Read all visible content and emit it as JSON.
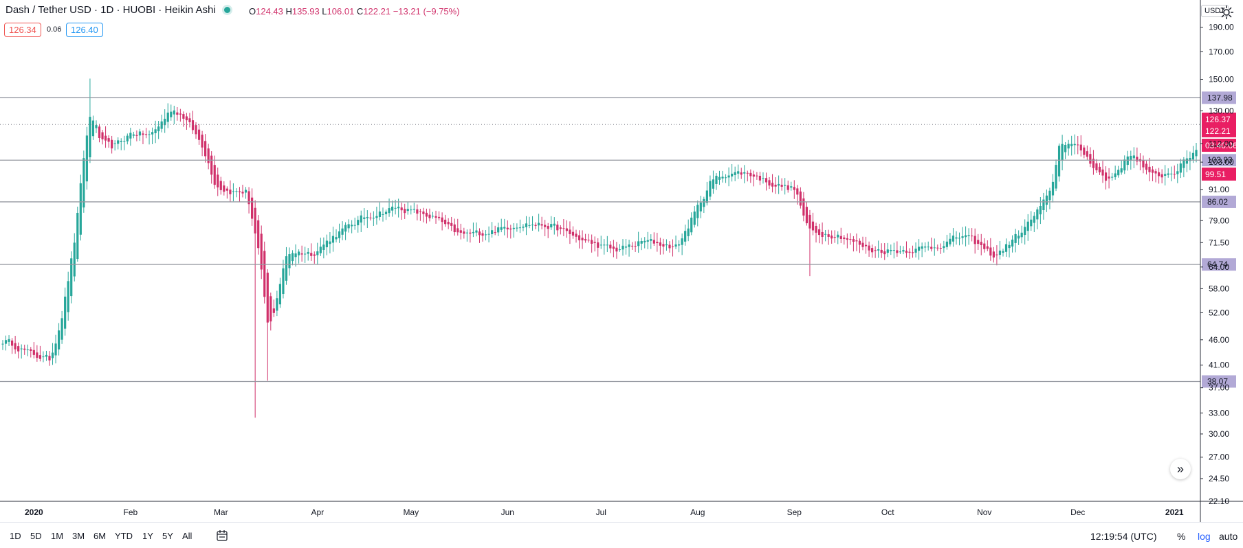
{
  "header": {
    "title": "Dash / Tether USD · 1D · HUOBI · Heikin Ashi",
    "ohlc": {
      "o_label": "O",
      "o": "124.43",
      "h_label": "H",
      "h": "135.93",
      "l_label": "L",
      "l": "106.01",
      "c_label": "C",
      "c": "122.21",
      "change": "−13.21 (−9.75%)"
    },
    "bid": "126.34",
    "spread": "0.06",
    "ask": "126.40"
  },
  "axis": {
    "currency": "USDT",
    "price_ticks": [
      "190.00",
      "170.00",
      "150.00",
      "130.00",
      "112.00",
      "103.00",
      "91.00",
      "79.00",
      "71.50",
      "64.00",
      "58.00",
      "52.00",
      "46.00",
      "41.00",
      "37.00",
      "33.00",
      "30.00",
      "27.00",
      "24.50",
      "22.10"
    ],
    "time_ticks": [
      "2020",
      "Feb",
      "Mar",
      "Apr",
      "May",
      "Jun",
      "Jul",
      "Aug",
      "Sep",
      "Oct",
      "Nov",
      "Dec",
      "2021"
    ]
  },
  "chart_data": {
    "type": "candlestick",
    "title": "Dash / Tether USD · 1D · HUOBI · Heikin Ashi",
    "scale": "log",
    "ylim": [
      22.1,
      215
    ],
    "x_range": [
      "2019-12-22",
      "2021-01-08"
    ],
    "up_color": "#26a69a",
    "down_color": "#d0306a",
    "close_path": [
      [
        "2019-12-22",
        46
      ],
      [
        "2019-12-31",
        43
      ],
      [
        "2020-01-06",
        42
      ],
      [
        "2020-01-10",
        53
      ],
      [
        "2020-01-14",
        75
      ],
      [
        "2020-01-17",
        112
      ],
      [
        "2020-01-19",
        132
      ],
      [
        "2020-01-22",
        112
      ],
      [
        "2020-01-26",
        110
      ],
      [
        "2020-02-01",
        118
      ],
      [
        "2020-02-07",
        116
      ],
      [
        "2020-02-14",
        132
      ],
      [
        "2020-02-18",
        126
      ],
      [
        "2020-02-24",
        110
      ],
      [
        "2020-02-28",
        92
      ],
      [
        "2020-03-04",
        90
      ],
      [
        "2020-03-09",
        90
      ],
      [
        "2020-03-13",
        66
      ],
      [
        "2020-03-16",
        46
      ],
      [
        "2020-03-19",
        58
      ],
      [
        "2020-03-22",
        69
      ],
      [
        "2020-03-30",
        68
      ],
      [
        "2020-04-06",
        74
      ],
      [
        "2020-04-15",
        80
      ],
      [
        "2020-04-26",
        84
      ],
      [
        "2020-05-08",
        80
      ],
      [
        "2020-05-16",
        74
      ],
      [
        "2020-05-25",
        75
      ],
      [
        "2020-06-05",
        78
      ],
      [
        "2020-06-15",
        77
      ],
      [
        "2020-06-25",
        72
      ],
      [
        "2020-07-05",
        69
      ],
      [
        "2020-07-15",
        72
      ],
      [
        "2020-07-25",
        70
      ],
      [
        "2020-08-05",
        95
      ],
      [
        "2020-08-10",
        98
      ],
      [
        "2020-08-17",
        98
      ],
      [
        "2020-08-25",
        93
      ],
      [
        "2020-09-01",
        91
      ],
      [
        "2020-09-05",
        75
      ],
      [
        "2020-09-15",
        74
      ],
      [
        "2020-09-25",
        69
      ],
      [
        "2020-10-05",
        69
      ],
      [
        "2020-10-15",
        70
      ],
      [
        "2020-10-25",
        74
      ],
      [
        "2020-11-04",
        67
      ],
      [
        "2020-11-14",
        77
      ],
      [
        "2020-11-22",
        90
      ],
      [
        "2020-11-25",
        115
      ],
      [
        "2020-12-02",
        108
      ],
      [
        "2020-12-10",
        94
      ],
      [
        "2020-12-18",
        108
      ],
      [
        "2020-12-24",
        96
      ],
      [
        "2021-01-01",
        99
      ],
      [
        "2021-01-08",
        110
      ]
    ],
    "wick_extremes": [
      {
        "date": "2020-01-19",
        "high": 150.5
      },
      {
        "date": "2020-03-12",
        "low": 32.3
      },
      {
        "date": "2020-03-16",
        "low": 38.2
      },
      {
        "date": "2020-09-06",
        "low": 61.4
      }
    ],
    "horizontal_levels": [
      {
        "value": "137.98",
        "style": "solid"
      },
      {
        "value": "103.93",
        "style": "solid"
      },
      {
        "value": "86.02",
        "style": "solid"
      },
      {
        "value": "64.74",
        "style": "solid"
      },
      {
        "value": "38.07",
        "style": "solid"
      },
      {
        "value": "122.21",
        "style": "dotted"
      }
    ],
    "price_labels": [
      {
        "value": "126.37",
        "kind": "high"
      },
      {
        "value": "122.21",
        "kind": "last"
      },
      {
        "value": "03:40:06",
        "kind": "countdown"
      },
      {
        "value": "99.51",
        "kind": "low"
      }
    ]
  },
  "toolbar": {
    "ranges": [
      "1D",
      "5D",
      "1M",
      "3M",
      "6M",
      "YTD",
      "1Y",
      "5Y",
      "All"
    ],
    "calendar_icon": "calendar-range-icon",
    "time": "12:19:54 (UTC)",
    "percent": "%",
    "log": "log",
    "auto": "auto",
    "settings_icon": "gear-icon",
    "scroll_icon": "chevron-double-right-icon"
  }
}
